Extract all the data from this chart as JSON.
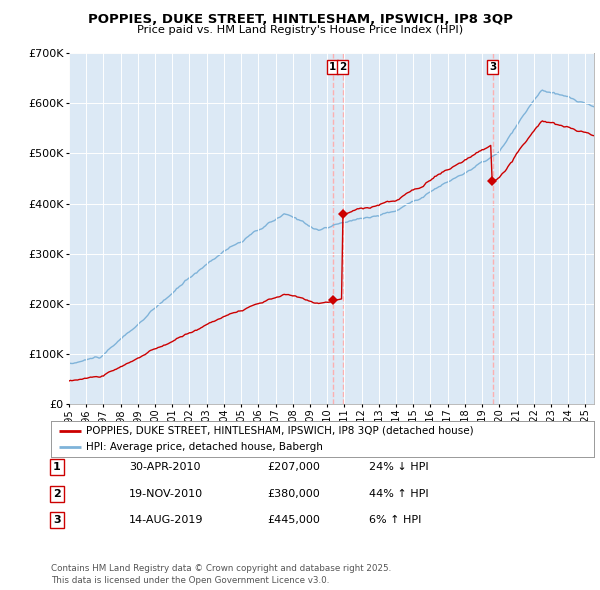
{
  "title1": "POPPIES, DUKE STREET, HINTLESHAM, IPSWICH, IP8 3QP",
  "title2": "Price paid vs. HM Land Registry's House Price Index (HPI)",
  "background_color": "#dce9f5",
  "plot_bg": "#dce9f5",
  "hpi_color": "#7fb3d9",
  "price_color": "#cc0000",
  "sale1_date": 2010.33,
  "sale1_price": 207000,
  "sale1_label": "30-APR-2010",
  "sale1_pct": "24% ↓ HPI",
  "sale2_date": 2010.89,
  "sale2_price": 380000,
  "sale2_label": "19-NOV-2010",
  "sale2_pct": "44% ↑ HPI",
  "sale3_date": 2019.62,
  "sale3_price": 445000,
  "sale3_label": "14-AUG-2019",
  "sale3_pct": "6% ↑ HPI",
  "ylim_max": 700000,
  "ylim_min": 0,
  "footer": "Contains HM Land Registry data © Crown copyright and database right 2025.\nThis data is licensed under the Open Government Licence v3.0.",
  "legend1": "POPPIES, DUKE STREET, HINTLESHAM, IPSWICH, IP8 3QP (detached house)",
  "legend2": "HPI: Average price, detached house, Babergh"
}
